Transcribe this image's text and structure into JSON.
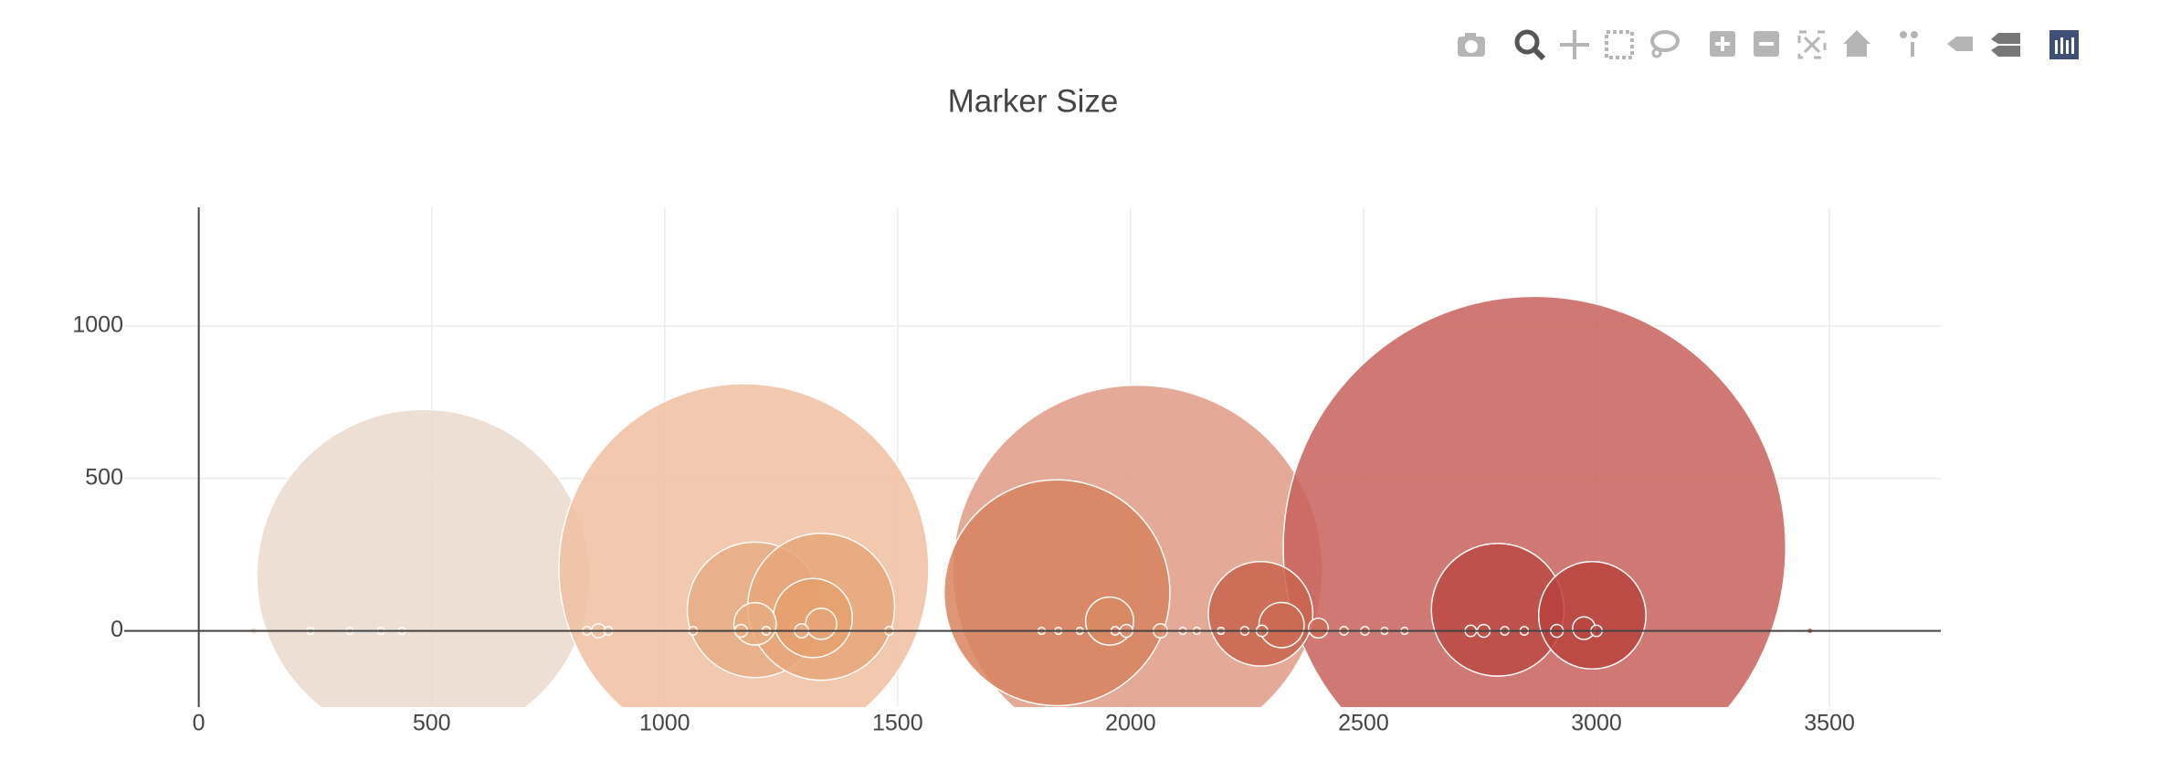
{
  "chart_data": {
    "type": "scatter",
    "title": "Marker Size",
    "xlim": [
      -160,
      3739
    ],
    "ylim": [
      -250,
      1389
    ],
    "xticks": [
      0,
      500,
      1000,
      1500,
      2000,
      2500,
      3000,
      3500
    ],
    "yticks": [
      0,
      500,
      1000
    ],
    "grid": true,
    "series": [
      {
        "x": [
          482,
          1170,
          2015,
          2867,
          1842,
          1194,
          1336,
          1318,
          2279,
          2788,
          2991,
          1955,
          2324,
          1194,
          1336,
          2973,
          2403,
          118,
          240,
          324,
          391,
          436,
          833,
          858,
          879,
          1061,
          1164,
          1218,
          1294,
          1482,
          1809,
          1845,
          1891,
          1967,
          1991,
          2064,
          2112,
          2142,
          2194,
          2245,
          2282,
          2458,
          2503,
          2545,
          2588,
          2730,
          2758,
          2803,
          2845,
          2915,
          3000,
          3458
        ],
        "y": [
          180,
          204,
          199,
          273,
          125,
          69,
          79,
          42,
          56,
          69,
          51,
          32,
          19,
          23,
          23,
          9,
          9,
          0,
          0,
          0,
          0,
          0,
          0,
          0,
          0,
          0,
          0,
          0,
          0,
          0,
          0,
          0,
          0,
          0,
          0,
          0,
          0,
          0,
          0,
          0,
          0,
          0,
          0,
          0,
          0,
          0,
          0,
          0,
          0,
          0,
          0,
          0
        ],
        "marker_size": [
          236,
          262,
          262,
          356,
          160,
          96,
          104,
          56,
          74,
          94,
          76,
          34,
          32,
          30,
          22,
          16,
          14,
          5,
          5,
          5,
          5,
          5,
          6,
          10,
          6,
          6,
          9,
          6,
          10,
          6,
          5,
          5,
          5,
          6,
          9,
          10,
          5,
          5,
          5,
          6,
          8,
          6,
          6,
          5,
          5,
          8,
          9,
          6,
          6,
          9,
          8,
          4
        ],
        "colors": [
          "#ead9cb",
          "#f0c0a0",
          "#e09a85",
          "#c8625c",
          "#d8845f",
          "#e8ad85",
          "#e8a679",
          "#e6a070",
          "#c9644e",
          "#bb4a44",
          "#b8423d",
          "#d88a62",
          "#cc6a52",
          "#e8ab80",
          "#e8a47a",
          "#b9453f",
          "#cd6c56",
          "#ead9cb",
          "#ead9cb",
          "#ead9cb",
          "#ead9cb",
          "#ead9cb",
          "#efc3a2",
          "#efc3a2",
          "#efc3a2",
          "#e9ad85",
          "#e9ad85",
          "#e9ad85",
          "#e9ad85",
          "#e9ad85",
          "#df9b80",
          "#df9b80",
          "#df9b80",
          "#dd9070",
          "#dd9070",
          "#dd9070",
          "#dd9070",
          "#dd9070",
          "#dd9070",
          "#cc6b56",
          "#cc6b56",
          "#cd6e58",
          "#cd6e58",
          "#cd6e58",
          "#cd6e58",
          "#c0504a",
          "#c0504a",
          "#c0504a",
          "#c0504a",
          "#b9443e",
          "#b9443e",
          "#c0392b"
        ]
      }
    ]
  }
}
